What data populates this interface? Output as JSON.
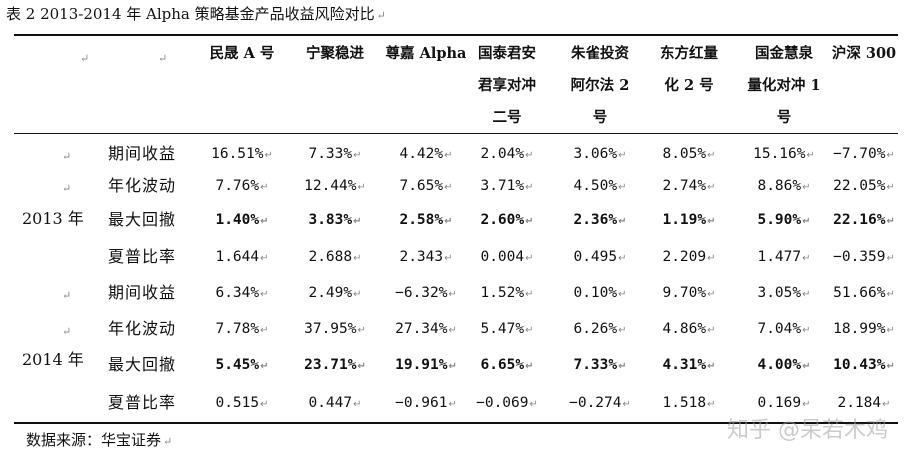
{
  "caption": "表 2 2013-2014 年 Alpha 策略基金产品收益风险对比",
  "paragraph_mark": "↵",
  "header_marks": [
    "↵",
    "↵"
  ],
  "columns": [
    [
      "民晟 A 号"
    ],
    [
      "宁聚稳进"
    ],
    [
      "尊嘉 Alpha"
    ],
    [
      "国泰君安",
      "君享对冲",
      "二号"
    ],
    [
      "朱雀投资",
      "阿尔法 2",
      "号"
    ],
    [
      "东方红量",
      "化 2 号"
    ],
    [
      "国金慧泉",
      "量化对冲 1",
      "号"
    ],
    [
      "沪深 300"
    ]
  ],
  "years": [
    {
      "label": "2013 年",
      "rows": [
        {
          "metric": "期间收益",
          "bold": false,
          "values": [
            "16.51%",
            "7.33%",
            "4.42%",
            "2.04%",
            "3.06%",
            "8.05%",
            "15.16%",
            "-7.70%"
          ]
        },
        {
          "metric": "年化波动",
          "bold": false,
          "values": [
            "7.76%",
            "12.44%",
            "7.65%",
            "3.71%",
            "4.50%",
            "2.74%",
            "8.86%",
            "22.05%"
          ]
        },
        {
          "metric": "最大回撤",
          "bold": true,
          "values": [
            "1.40%",
            "3.83%",
            "2.58%",
            "2.60%",
            "2.36%",
            "1.19%",
            "5.90%",
            "22.16%"
          ]
        },
        {
          "metric": "夏普比率",
          "bold": false,
          "values": [
            "1.644",
            "2.688",
            "2.343",
            "0.004",
            "0.495",
            "2.209",
            "1.477",
            "-0.359"
          ]
        }
      ]
    },
    {
      "label": "2014 年",
      "rows": [
        {
          "metric": "期间收益",
          "bold": false,
          "values": [
            "6.34%",
            "2.49%",
            "-6.32%",
            "1.52%",
            "0.10%",
            "9.70%",
            "3.05%",
            "51.66%"
          ]
        },
        {
          "metric": "年化波动",
          "bold": false,
          "values": [
            "7.78%",
            "37.95%",
            "27.34%",
            "5.47%",
            "6.26%",
            "4.86%",
            "7.04%",
            "18.99%"
          ]
        },
        {
          "metric": "最大回撤",
          "bold": true,
          "values": [
            "5.45%",
            "23.71%",
            "19.91%",
            "6.65%",
            "7.33%",
            "4.31%",
            "4.00%",
            "10.43%"
          ]
        },
        {
          "metric": "夏普比率",
          "bold": false,
          "values": [
            "0.515",
            "0.447",
            "-0.961",
            "-0.069",
            "-0.274",
            "1.518",
            "0.169",
            "2.184"
          ]
        }
      ]
    }
  ],
  "source": "数据来源：华宝证券",
  "watermark": "知乎 @呆若木鸡"
}
